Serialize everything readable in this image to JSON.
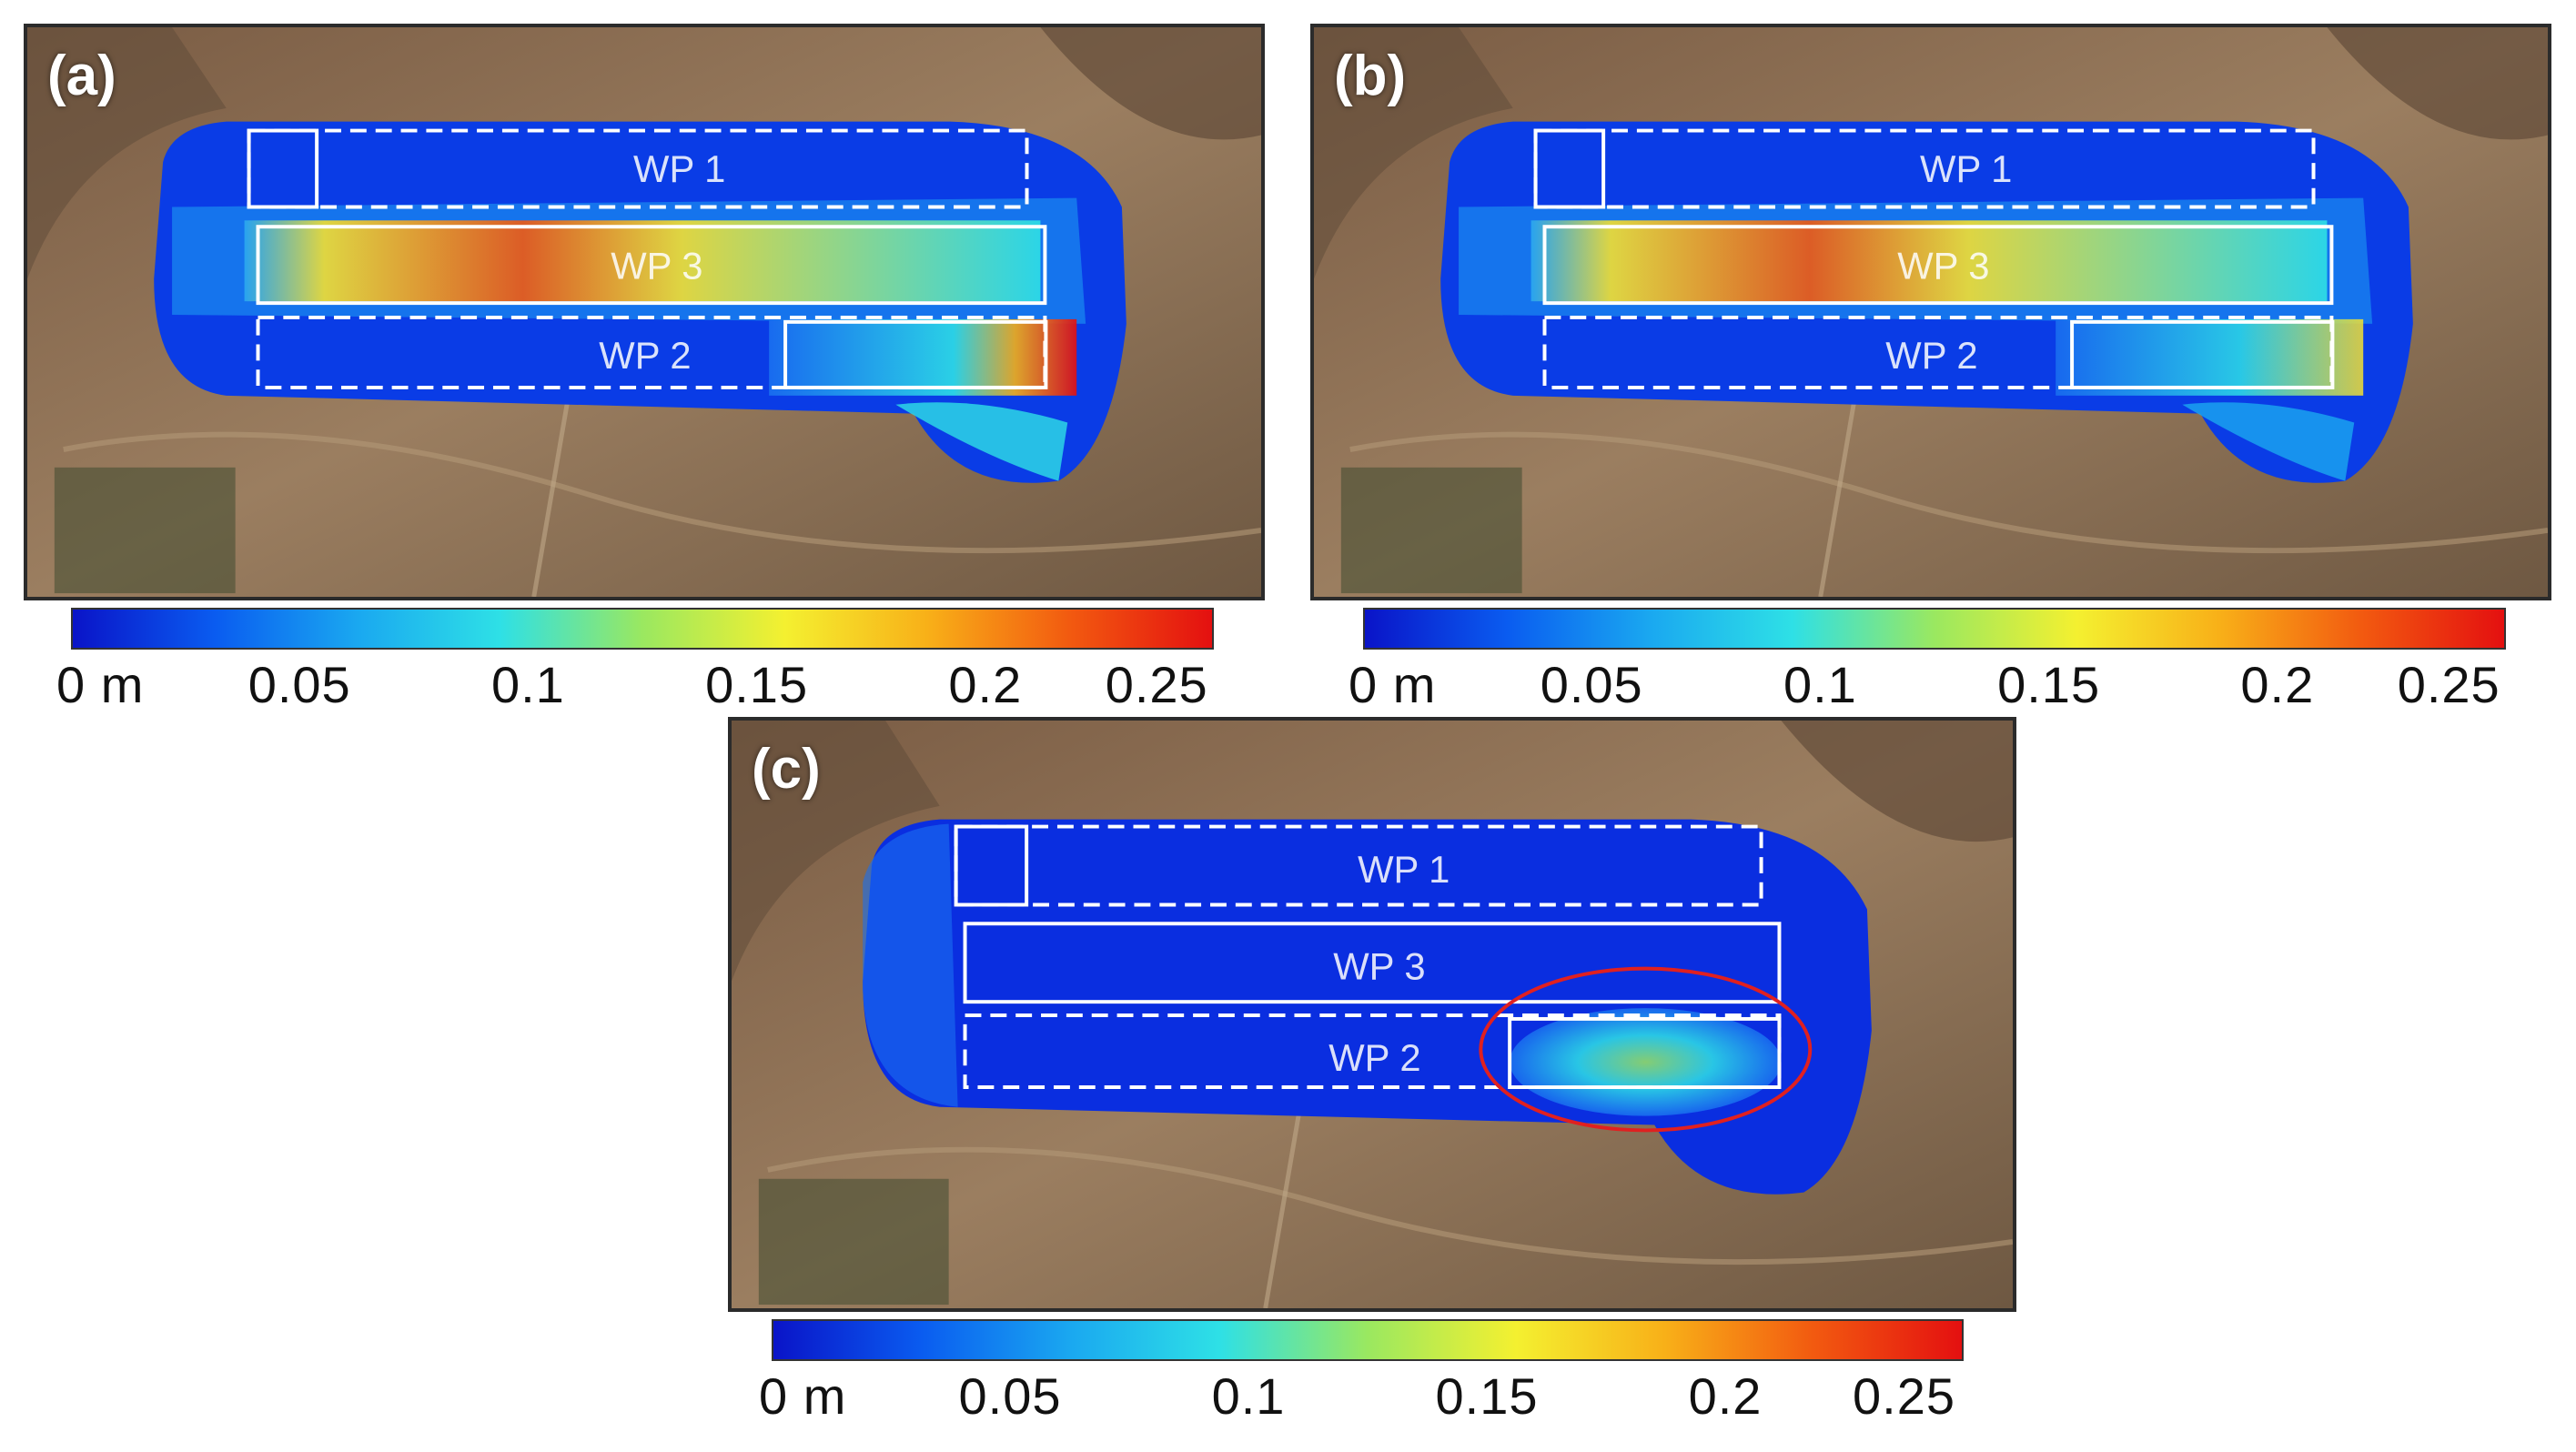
{
  "panels": [
    {
      "id": "a",
      "label": "(a)"
    },
    {
      "id": "b",
      "label": "(b)"
    },
    {
      "id": "c",
      "label": "(c)"
    }
  ],
  "work_panels": [
    "WP 1",
    "WP 3",
    "WP 2"
  ],
  "colorbar": {
    "unit": "m",
    "ticks": [
      "0 m",
      "0.05",
      "0.1",
      "0.15",
      "0.2",
      "0.25"
    ],
    "range": [
      0,
      0.25
    ],
    "colors": [
      "#0a14c8",
      "#0a5cf0",
      "#1aa8f0",
      "#2ee0e6",
      "#9ae860",
      "#f4f030",
      "#f8b018",
      "#f25a10",
      "#e41010"
    ]
  },
  "annotation": {
    "panel": "c",
    "shape": "ellipse",
    "color": "#e02020"
  }
}
